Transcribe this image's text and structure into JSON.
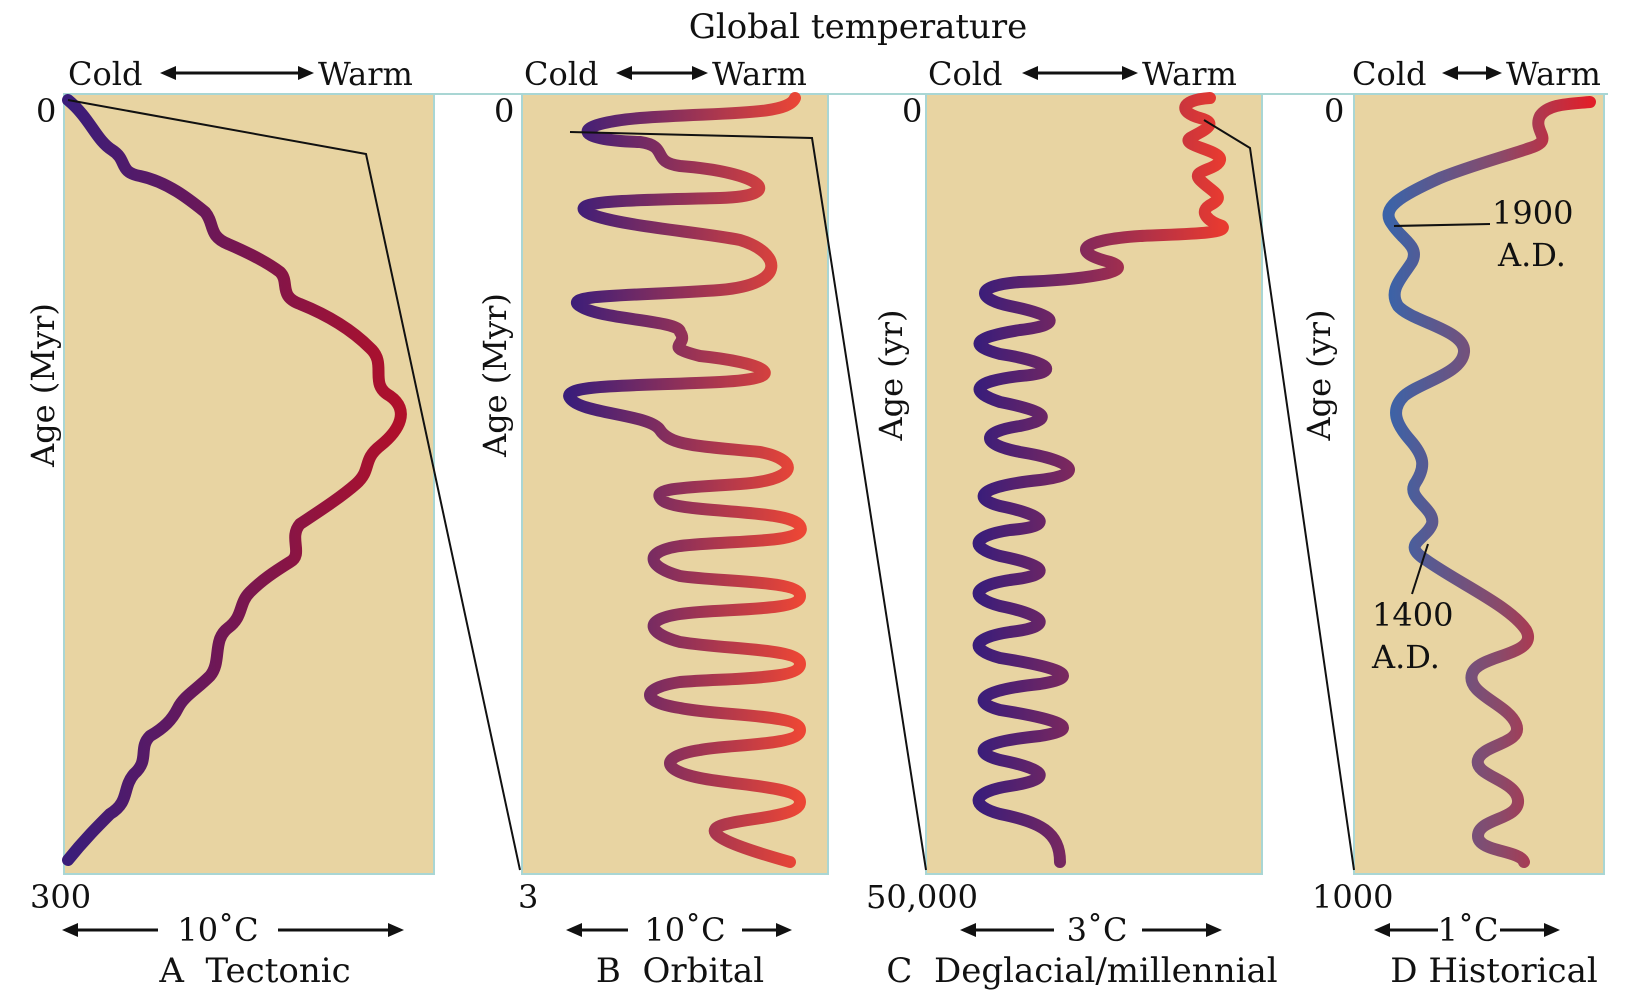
{
  "title": "Global temperature",
  "panels": [
    {
      "id": "A",
      "cold": "Cold",
      "warm": "Warm",
      "top_tick": "0",
      "bottom_tick": "300",
      "ylabel": "Age (Myr)",
      "scale": "10˚C",
      "caption": "A  Tectonic"
    },
    {
      "id": "B",
      "cold": "Cold",
      "warm": "Warm",
      "top_tick": "0",
      "bottom_tick": "3",
      "ylabel": "Age (Myr)",
      "scale": "10˚C",
      "caption": "B  Orbital"
    },
    {
      "id": "C",
      "cold": "Cold",
      "warm": "Warm",
      "top_tick": "0",
      "bottom_tick": "50,000",
      "ylabel": "Age (yr)",
      "scale": "3˚C",
      "caption": "C  Deglacial/millennial"
    },
    {
      "id": "D",
      "cold": "Cold",
      "warm": "Warm",
      "top_tick": "0",
      "bottom_tick": "1000",
      "ylabel": "Age (yr)",
      "scale": "1˚C",
      "caption": "D Historical"
    }
  ],
  "annotations": {
    "d_1900_line1": "1900",
    "d_1900_line2": "A.D.",
    "d_1400_line1": "1400",
    "d_1400_line2": "A.D."
  },
  "colors": {
    "panel_bg": "#e8d4a2",
    "cold": "#3d1f7a",
    "warm": "#e3342f",
    "historical_cold": "#3b63a8",
    "tectonic_warm": "#a3102a"
  }
}
